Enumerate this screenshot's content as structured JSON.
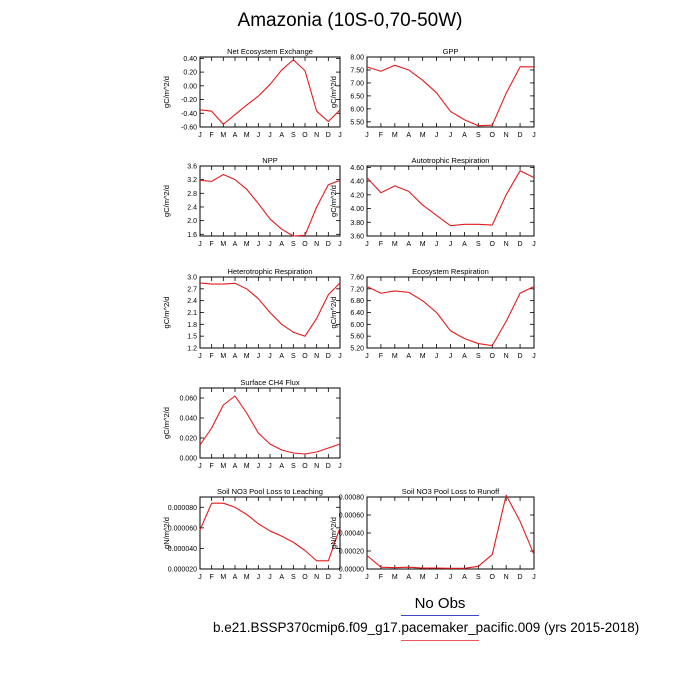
{
  "title": "Amazonia (10S-0,70-50W)",
  "legend": {
    "title": "No Obs",
    "case": "b.e21.BSSP370cmip6.f09_g17.pacemaker_pacific.009 (yrs 2015-2018)",
    "line_color_1": "#3c44c8",
    "line_color_2": "#e85a5a"
  },
  "chart_data": [
    {
      "type": "line",
      "title": "Net Ecosystem Exchange",
      "ylabel": "gC/m^2/d",
      "categories": [
        "J",
        "F",
        "M",
        "A",
        "M",
        "J",
        "J",
        "A",
        "S",
        "O",
        "N",
        "D",
        "J"
      ],
      "yticks": [
        "0.40",
        "0.20",
        "0.00",
        "-0.20",
        "-0.40",
        "-0.60"
      ],
      "ytick_values": [
        0.4,
        0.2,
        0.0,
        -0.2,
        -0.4,
        -0.6
      ],
      "ylim": [
        -0.6,
        0.42
      ],
      "values": [
        -0.35,
        -0.37,
        -0.56,
        -0.42,
        -0.28,
        -0.15,
        0.02,
        0.23,
        0.38,
        0.22,
        -0.37,
        -0.52,
        -0.35
      ],
      "color": "#e41a1c"
    },
    {
      "type": "line",
      "title": "GPP",
      "ylabel": "gC/m^2/d",
      "categories": [
        "J",
        "F",
        "M",
        "A",
        "M",
        "J",
        "J",
        "A",
        "S",
        "O",
        "N",
        "D",
        "J"
      ],
      "yticks": [
        "8.00",
        "7.50",
        "7.00",
        "6.50",
        "6.00",
        "5.50"
      ],
      "ytick_values": [
        8.0,
        7.5,
        7.0,
        6.5,
        6.0,
        5.5
      ],
      "ylim": [
        5.3,
        8.0
      ],
      "values": [
        7.62,
        7.45,
        7.68,
        7.5,
        7.1,
        6.62,
        5.9,
        5.58,
        5.35,
        5.37,
        6.6,
        7.62,
        7.62
      ],
      "color": "#e41a1c"
    },
    {
      "type": "line",
      "title": "NPP",
      "ylabel": "gC/m^2/d",
      "categories": [
        "J",
        "F",
        "M",
        "A",
        "M",
        "J",
        "J",
        "A",
        "S",
        "O",
        "N",
        "D",
        "J"
      ],
      "yticks": [
        "3.6",
        "3.2",
        "2.8",
        "2.4",
        "2.0",
        "1.6"
      ],
      "ytick_values": [
        3.6,
        3.2,
        2.8,
        2.4,
        2.0,
        1.6
      ],
      "ylim": [
        1.55,
        3.6
      ],
      "values": [
        3.18,
        3.15,
        3.35,
        3.2,
        2.92,
        2.5,
        2.05,
        1.75,
        1.55,
        1.57,
        2.4,
        3.05,
        3.18
      ],
      "color": "#e41a1c"
    },
    {
      "type": "line",
      "title": "Autotrophic Respiration",
      "ylabel": "gC/m^2/d",
      "categories": [
        "J",
        "F",
        "M",
        "A",
        "M",
        "J",
        "J",
        "A",
        "S",
        "O",
        "N",
        "D",
        "J"
      ],
      "yticks": [
        "4.60",
        "4.40",
        "4.20",
        "4.00",
        "3.80",
        "3.60"
      ],
      "ytick_values": [
        4.6,
        4.4,
        4.2,
        4.0,
        3.8,
        3.6
      ],
      "ylim": [
        3.6,
        4.62
      ],
      "values": [
        4.45,
        4.23,
        4.33,
        4.25,
        4.05,
        3.9,
        3.75,
        3.77,
        3.77,
        3.76,
        4.2,
        4.55,
        4.45
      ],
      "color": "#e41a1c"
    },
    {
      "type": "line",
      "title": "Heterotrophic Respiration",
      "ylabel": "gC/m^2/d",
      "categories": [
        "J",
        "F",
        "M",
        "A",
        "M",
        "J",
        "J",
        "A",
        "S",
        "O",
        "N",
        "D",
        "J"
      ],
      "yticks": [
        "3.0",
        "2.7",
        "2.4",
        "2.1",
        "1.8",
        "1.5",
        "1.2"
      ],
      "ytick_values": [
        3.0,
        2.7,
        2.4,
        2.1,
        1.8,
        1.5,
        1.2
      ],
      "ylim": [
        1.2,
        3.0
      ],
      "values": [
        2.85,
        2.82,
        2.82,
        2.84,
        2.7,
        2.45,
        2.1,
        1.8,
        1.6,
        1.5,
        1.95,
        2.55,
        2.85
      ],
      "color": "#e41a1c"
    },
    {
      "type": "line",
      "title": "Ecosystem Respiration",
      "ylabel": "gC/m^2/d",
      "categories": [
        "J",
        "F",
        "M",
        "A",
        "M",
        "J",
        "J",
        "A",
        "S",
        "O",
        "N",
        "D",
        "J"
      ],
      "yticks": [
        "7.60",
        "7.20",
        "6.80",
        "6.40",
        "6.00",
        "5.60",
        "5.20"
      ],
      "ytick_values": [
        7.6,
        7.2,
        6.8,
        6.4,
        6.0,
        5.6,
        5.2
      ],
      "ylim": [
        5.2,
        7.6
      ],
      "values": [
        7.28,
        7.05,
        7.13,
        7.08,
        6.8,
        6.4,
        5.78,
        5.52,
        5.35,
        5.28,
        6.1,
        7.05,
        7.28
      ],
      "color": "#e41a1c"
    },
    {
      "type": "line",
      "title": "Surface CH4 Flux",
      "ylabel": "gC/m^2/d",
      "categories": [
        "J",
        "F",
        "M",
        "A",
        "M",
        "J",
        "J",
        "A",
        "S",
        "O",
        "N",
        "D",
        "J"
      ],
      "yticks": [
        "0.060",
        "0.040",
        "0.020",
        "0.000"
      ],
      "ytick_values": [
        0.06,
        0.04,
        0.02,
        0.0
      ],
      "ylim": [
        0.0,
        0.07
      ],
      "values": [
        0.013,
        0.03,
        0.053,
        0.062,
        0.045,
        0.025,
        0.014,
        0.008,
        0.005,
        0.004,
        0.006,
        0.01,
        0.014
      ],
      "color": "#e41a1c"
    },
    {
      "type": "line",
      "title": "Soil NO3 Pool Loss to Leaching",
      "ylabel": "gN/m^2/d",
      "categories": [
        "J",
        "F",
        "M",
        "A",
        "M",
        "J",
        "J",
        "A",
        "S",
        "O",
        "N",
        "D",
        "J"
      ],
      "yticks": [
        "0.000080",
        "0.000060",
        "0.000040",
        "0.000020"
      ],
      "ytick_values": [
        8e-05,
        6e-05,
        4e-05,
        2e-05
      ],
      "ylim": [
        2e-05,
        9e-05
      ],
      "values": [
        5.8e-05,
        8.4e-05,
        8.4e-05,
        8e-05,
        7.3e-05,
        6.4e-05,
        5.7e-05,
        5.2e-05,
        4.6e-05,
        3.8e-05,
        2.8e-05,
        2.8e-05,
        6e-05
      ],
      "color": "#e41a1c"
    },
    {
      "type": "line",
      "title": "Soil NO3 Pool Loss to Runoff",
      "ylabel": "gN/m^2/d",
      "categories": [
        "J",
        "F",
        "M",
        "A",
        "M",
        "J",
        "J",
        "A",
        "S",
        "O",
        "N",
        "D",
        "J"
      ],
      "yticks": [
        "0.00080",
        "0.00060",
        "0.00040",
        "0.00020",
        "0.00000"
      ],
      "ytick_values": [
        0.0008,
        0.0006,
        0.0004,
        0.0002,
        0.0
      ],
      "ylim": [
        0.0,
        0.0008
      ],
      "values": [
        0.00015,
        2e-05,
        1.5e-05,
        2e-05,
        1e-05,
        1e-05,
        8e-06,
        8e-06,
        3e-05,
        0.00016,
        0.00082,
        0.00053,
        0.00016
      ],
      "color": "#e41a1c"
    }
  ]
}
